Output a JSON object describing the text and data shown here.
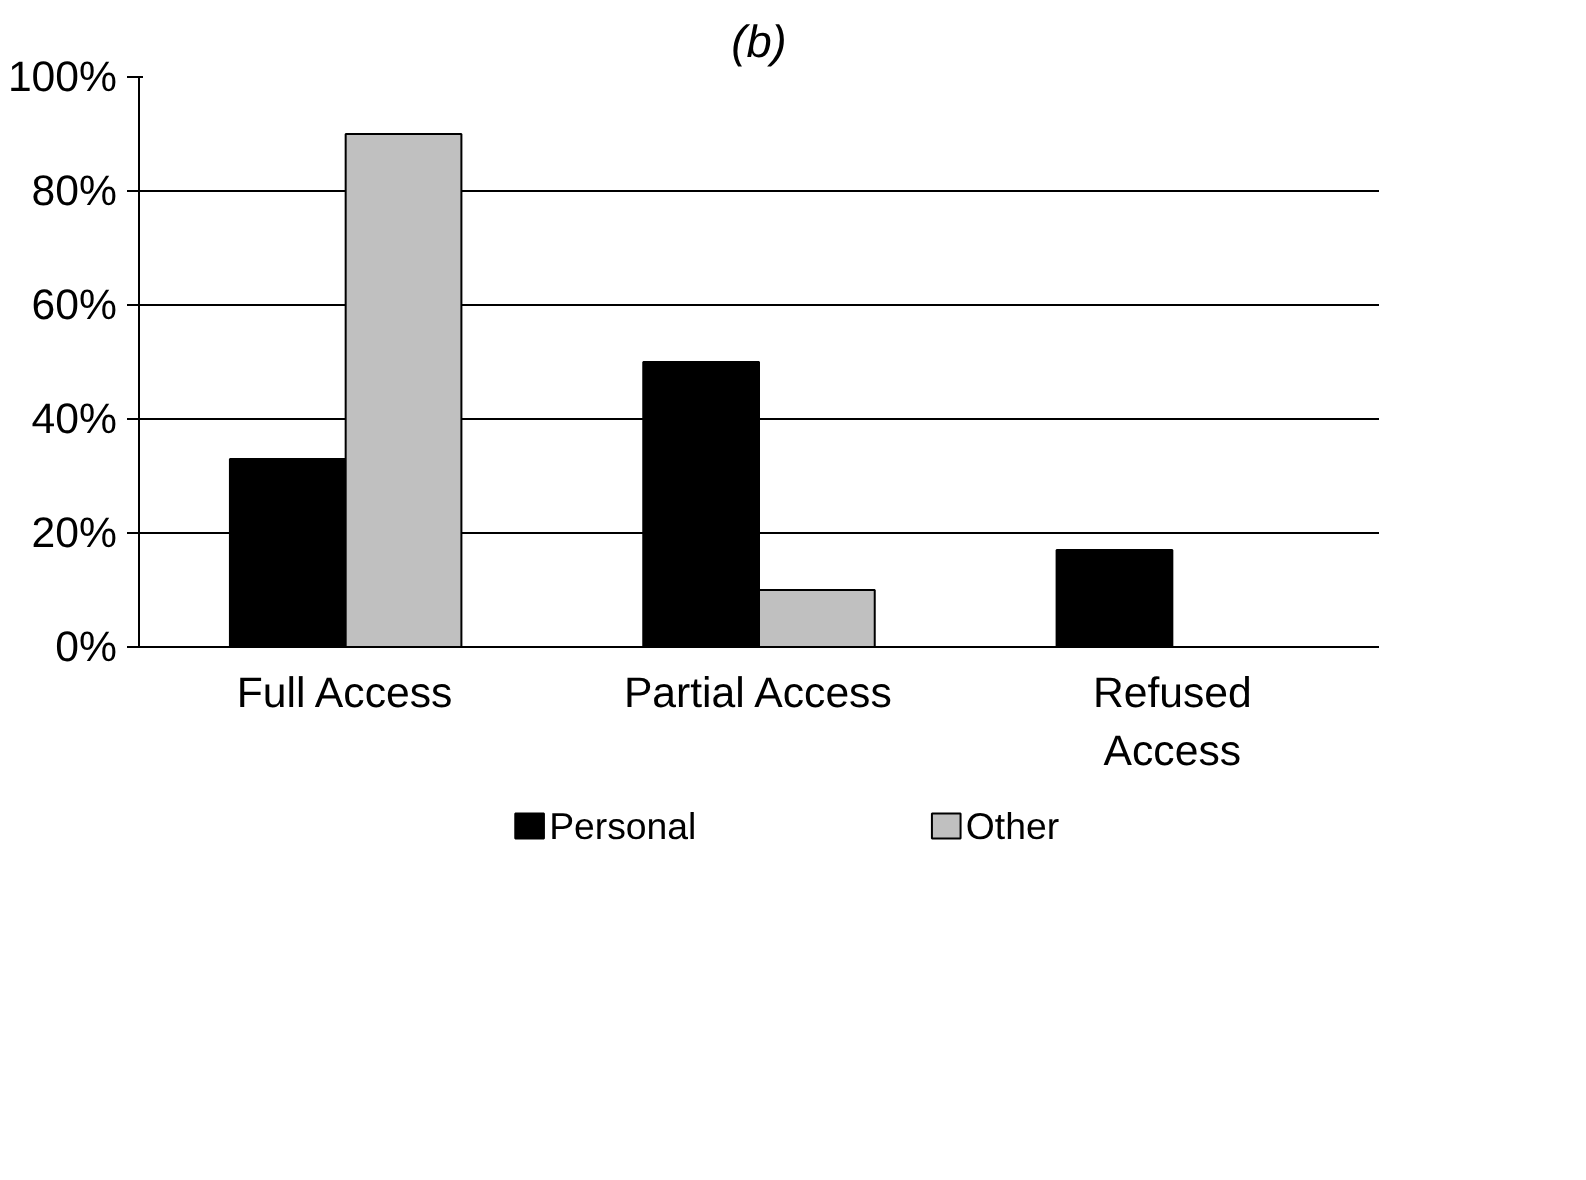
{
  "chart_data": {
    "type": "bar",
    "title": "(b)",
    "categories": [
      "Full Access",
      "Partial Access",
      "Refused\nAccess"
    ],
    "series": [
      {
        "name": "Personal",
        "color": "#000000",
        "values": [
          33,
          50,
          17
        ]
      },
      {
        "name": "Other",
        "color": "#c0c0c0",
        "values": [
          90,
          10,
          0
        ]
      }
    ],
    "ylim": [
      0,
      100
    ],
    "yticks": [
      {
        "value": 0,
        "label": "0%"
      },
      {
        "value": 20,
        "label": "20%"
      },
      {
        "value": 40,
        "label": "40%"
      },
      {
        "value": 60,
        "label": "60%"
      },
      {
        "value": 80,
        "label": "80%"
      },
      {
        "value": 100,
        "label": "100%"
      }
    ],
    "grid": "y",
    "legend": "bottom"
  }
}
